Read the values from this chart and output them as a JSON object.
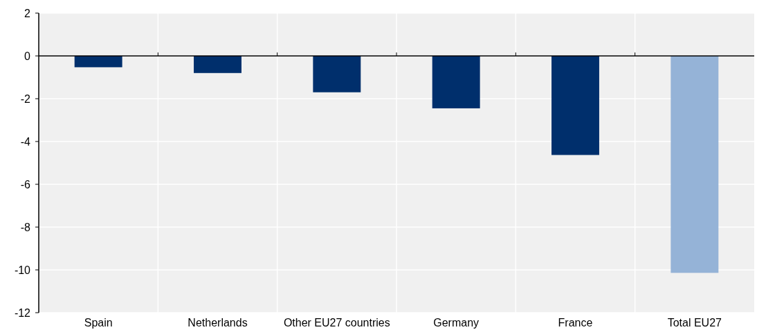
{
  "chart_data": {
    "type": "bar",
    "categories": [
      "Spain",
      "Netherlands",
      "Other EU27 countries",
      "Germany",
      "France",
      "Total EU27"
    ],
    "values": [
      -0.53,
      -0.8,
      -1.7,
      -2.45,
      -4.63,
      -10.14
    ],
    "colors": [
      "#002f6c",
      "#002f6c",
      "#002f6c",
      "#002f6c",
      "#002f6c",
      "#95b3d7"
    ],
    "ylim": [
      -12,
      2
    ],
    "yticks": [
      2,
      0,
      -2,
      -4,
      -6,
      -8,
      -10,
      -12
    ],
    "grid": true
  }
}
